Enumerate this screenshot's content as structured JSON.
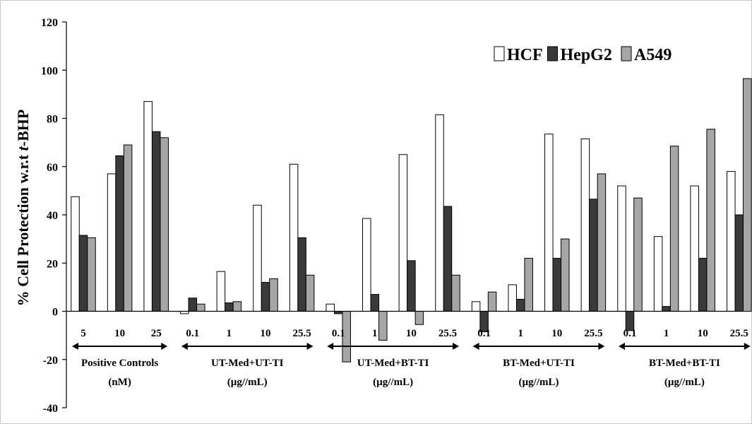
{
  "chart_data": {
    "type": "bar",
    "ylabel_prefix": "% Cell Protection w.r.t ",
    "ylabel_italic": "t",
    "ylabel_suffix": "-BHP",
    "ylim": [
      -40,
      120
    ],
    "yticks": [
      -40,
      -20,
      0,
      20,
      40,
      60,
      80,
      100,
      120
    ],
    "categories": [
      "5",
      "10",
      "25",
      "0.1",
      "1",
      "10",
      "25.5",
      "0.1",
      "1",
      "10",
      "25.5",
      "0.1",
      "1",
      "10",
      "25.5",
      "0.1",
      "1",
      "10",
      "25.5"
    ],
    "groups": [
      {
        "line1": "Positive Controls",
        "line2": "(nM)",
        "start": 0,
        "end": 2
      },
      {
        "line1": "UT-Med+UT-TI",
        "line2": "(µg//mL)",
        "start": 3,
        "end": 6
      },
      {
        "line1": "UT-Med+BT-TI",
        "line2": "(µg//mL)",
        "start": 7,
        "end": 10
      },
      {
        "line1": "BT-Med+UT-TI",
        "line2": "(µg//mL)",
        "start": 11,
        "end": 14
      },
      {
        "line1": "BT-Med+BT-TI",
        "line2": "(µg//mL)",
        "start": 15,
        "end": 18
      }
    ],
    "series": [
      {
        "name": "HCF",
        "color": "#ffffff",
        "values": [
          47.5,
          57,
          87,
          -1,
          16.5,
          44,
          61,
          3,
          38.5,
          65,
          81.5,
          4,
          11,
          73.5,
          71.5,
          52,
          31,
          52,
          58
        ]
      },
      {
        "name": "HepG2",
        "color": "#3a3a3a",
        "values": [
          31.5,
          64.5,
          74.5,
          5.5,
          3.5,
          12,
          30.5,
          -1,
          7,
          21,
          43.5,
          -8.5,
          5,
          22,
          46.5,
          -8,
          2,
          22,
          40
        ]
      },
      {
        "name": "A549",
        "color": "#a6a6a6",
        "values": [
          30.5,
          69,
          72,
          3,
          4,
          13.5,
          15,
          -21,
          -12,
          -5.5,
          15,
          8,
          22,
          30,
          57,
          47,
          68.5,
          75.5,
          96.5
        ]
      }
    ],
    "legend_position": "top-right",
    "grid": false
  }
}
